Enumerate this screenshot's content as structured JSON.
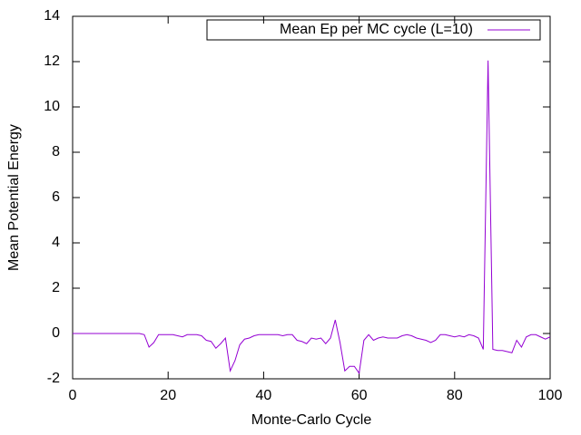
{
  "chart_data": {
    "type": "line",
    "xlabel": "Monte-Carlo Cycle",
    "ylabel": "Mean Potential Energy",
    "x": [
      0,
      1,
      2,
      3,
      4,
      5,
      6,
      7,
      8,
      9,
      10,
      11,
      12,
      13,
      14,
      15,
      16,
      17,
      18,
      19,
      20,
      21,
      22,
      23,
      24,
      25,
      26,
      27,
      28,
      29,
      30,
      31,
      32,
      33,
      34,
      35,
      36,
      37,
      38,
      39,
      40,
      41,
      42,
      43,
      44,
      45,
      46,
      47,
      48,
      49,
      50,
      51,
      52,
      53,
      54,
      55,
      56,
      57,
      58,
      59,
      60,
      61,
      62,
      63,
      64,
      65,
      66,
      67,
      68,
      69,
      70,
      71,
      72,
      73,
      74,
      75,
      76,
      77,
      78,
      79,
      80,
      81,
      82,
      83,
      84,
      85,
      86,
      87,
      88,
      89,
      90,
      91,
      92,
      93,
      94,
      95,
      96,
      97,
      98,
      99,
      100
    ],
    "series": [
      {
        "name": "Mean Ep per MC cycle (L=10)",
        "color": "#9400d3",
        "values": [
          0,
          0,
          0,
          0,
          0,
          0,
          0,
          0,
          0,
          0,
          0,
          0,
          0,
          0,
          0,
          -0.05,
          -0.6,
          -0.4,
          -0.05,
          -0.05,
          -0.05,
          -0.05,
          -0.1,
          -0.15,
          -0.05,
          -0.05,
          -0.05,
          -0.1,
          -0.3,
          -0.35,
          -0.65,
          -0.45,
          -0.2,
          -1.65,
          -1.2,
          -0.5,
          -0.25,
          -0.2,
          -0.1,
          -0.05,
          -0.05,
          -0.05,
          -0.05,
          -0.05,
          -0.1,
          -0.05,
          -0.05,
          -0.3,
          -0.35,
          -0.45,
          -0.2,
          -0.25,
          -0.2,
          -0.45,
          -0.2,
          0.6,
          -0.4,
          -1.65,
          -1.45,
          -1.45,
          -1.75,
          -0.3,
          -0.05,
          -0.3,
          -0.2,
          -0.15,
          -0.2,
          -0.2,
          -0.2,
          -0.1,
          -0.05,
          -0.1,
          -0.2,
          -0.25,
          -0.3,
          -0.4,
          -0.3,
          -0.05,
          -0.05,
          -0.1,
          -0.15,
          -0.1,
          -0.15,
          -0.05,
          -0.1,
          -0.2,
          -0.7,
          12.05,
          -0.7,
          -0.75,
          -0.75,
          -0.8,
          -0.85,
          -0.3,
          -0.6,
          -0.15,
          -0.05,
          -0.05,
          -0.15,
          -0.25,
          -0.15
        ]
      }
    ],
    "xlim": [
      0,
      100
    ],
    "xticks": [
      0,
      20,
      40,
      60,
      80,
      100
    ],
    "ylim": [
      -2,
      14
    ],
    "yticks": [
      -2,
      0,
      2,
      4,
      6,
      8,
      10,
      12,
      14
    ],
    "legend": "top-right"
  }
}
